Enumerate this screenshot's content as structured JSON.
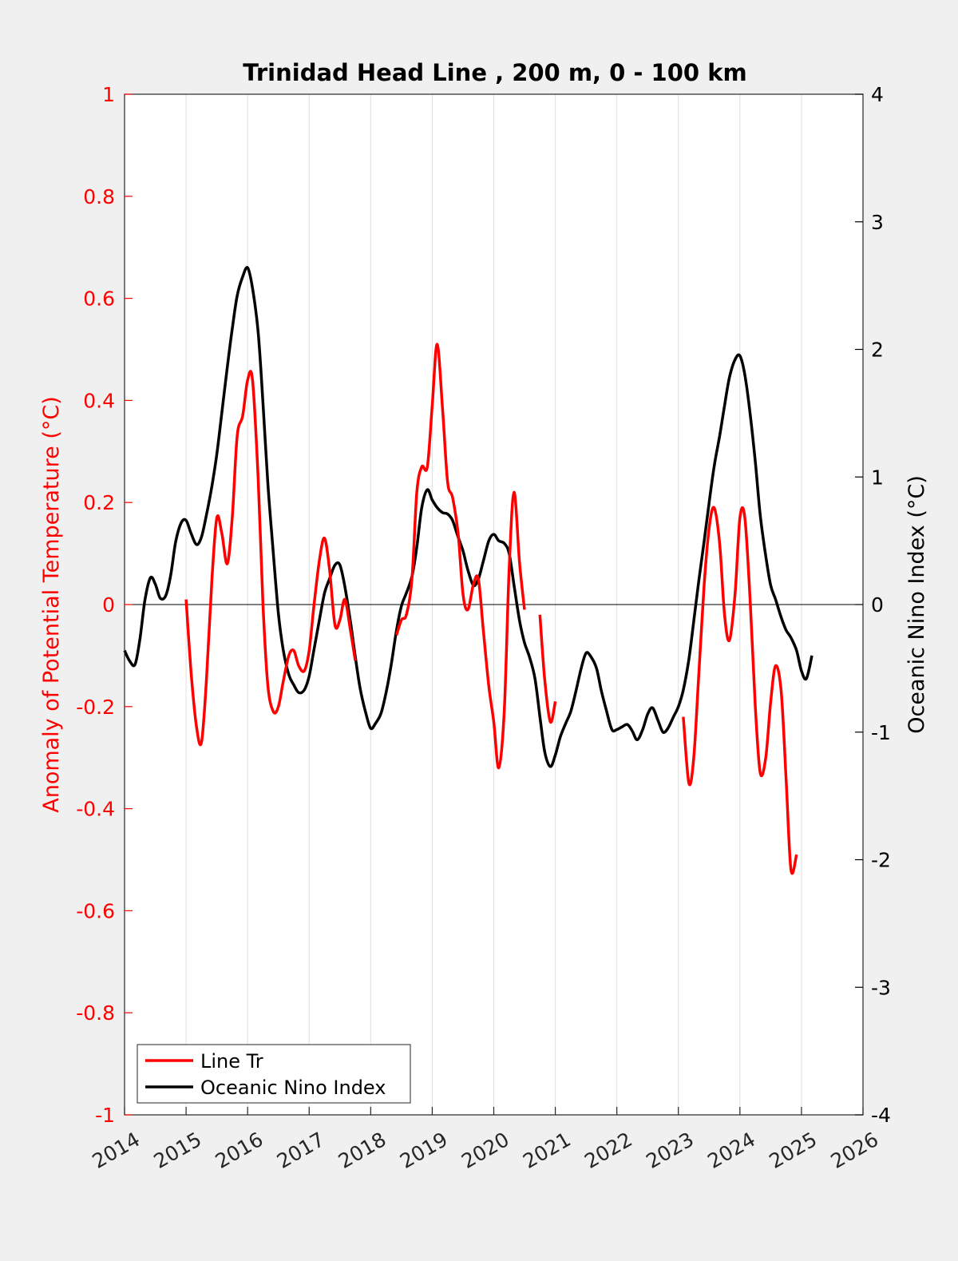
{
  "chart_data": {
    "type": "line",
    "title": "Trinidad Head Line , 200 m, 0 - 100 km",
    "xlabel": "",
    "ylabel_left": "Anomaly of Potential Temperature (°C)",
    "ylabel_right": "Oceanic Nino Index (°C)",
    "xlim": [
      2014,
      2026
    ],
    "ylim_left": [
      -1,
      1
    ],
    "ylim_right": [
      -4,
      4
    ],
    "x_ticks": [
      "2014",
      "2015",
      "2016",
      "2017",
      "2018",
      "2019",
      "2020",
      "2021",
      "2022",
      "2023",
      "2024",
      "2025",
      "2026"
    ],
    "y_ticks_left": [
      "1",
      "0.8",
      "0.6",
      "0.4",
      "0.2",
      "0",
      "-0.2",
      "-0.4",
      "-0.6",
      "-0.8",
      "-1"
    ],
    "y_ticks_right": [
      "4",
      "3",
      "2",
      "1",
      "0",
      "-1",
      "-2",
      "-3",
      "-4"
    ],
    "grid": "vertical",
    "zero_line": true,
    "colors": {
      "line_tr": "#ff0000",
      "oni": "#000000",
      "left_axis": "#ff0000",
      "right_axis": "#000000",
      "grid": "#e0e0e0"
    },
    "legend": {
      "placement": "bottom-left",
      "entries": [
        {
          "label": "Line Tr",
          "color": "#ff0000"
        },
        {
          "label": "Oceanic Nino Index",
          "color": "#000000"
        }
      ]
    },
    "series": [
      {
        "name": "Line Tr",
        "axis": "left",
        "color": "#ff0000",
        "segments": [
          [
            [
              2015.0,
              0.01
            ],
            [
              2015.08,
              -0.13
            ],
            [
              2015.17,
              -0.24
            ],
            [
              2015.25,
              -0.27
            ],
            [
              2015.33,
              -0.15
            ],
            [
              2015.42,
              0.05
            ],
            [
              2015.5,
              0.17
            ],
            [
              2015.58,
              0.14
            ],
            [
              2015.67,
              0.08
            ],
            [
              2015.75,
              0.17
            ],
            [
              2015.83,
              0.33
            ],
            [
              2015.92,
              0.37
            ],
            [
              2016.0,
              0.44
            ],
            [
              2016.08,
              0.44
            ],
            [
              2016.17,
              0.25
            ],
            [
              2016.25,
              0.0
            ],
            [
              2016.33,
              -0.16
            ],
            [
              2016.42,
              -0.21
            ],
            [
              2016.5,
              -0.2
            ],
            [
              2016.58,
              -0.15
            ],
            [
              2016.67,
              -0.1
            ],
            [
              2016.75,
              -0.09
            ],
            [
              2016.83,
              -0.12
            ],
            [
              2016.92,
              -0.13
            ],
            [
              2017.0,
              -0.09
            ],
            [
              2017.08,
              0.0
            ],
            [
              2017.17,
              0.09
            ],
            [
              2017.25,
              0.13
            ],
            [
              2017.33,
              0.07
            ],
            [
              2017.42,
              -0.04
            ],
            [
              2017.5,
              -0.03
            ],
            [
              2017.58,
              0.01
            ],
            [
              2017.67,
              -0.05
            ],
            [
              2017.75,
              -0.11
            ]
          ],
          [
            [
              2018.42,
              -0.06
            ],
            [
              2018.5,
              -0.03
            ],
            [
              2018.58,
              -0.02
            ],
            [
              2018.67,
              0.05
            ],
            [
              2018.75,
              0.22
            ],
            [
              2018.83,
              0.27
            ],
            [
              2018.92,
              0.27
            ],
            [
              2019.0,
              0.39
            ],
            [
              2019.08,
              0.51
            ],
            [
              2019.17,
              0.38
            ],
            [
              2019.25,
              0.24
            ],
            [
              2019.33,
              0.21
            ],
            [
              2019.42,
              0.14
            ],
            [
              2019.5,
              0.02
            ],
            [
              2019.58,
              -0.01
            ],
            [
              2019.67,
              0.04
            ],
            [
              2019.75,
              0.05
            ],
            [
              2019.83,
              -0.05
            ],
            [
              2019.92,
              -0.16
            ],
            [
              2020.0,
              -0.23
            ],
            [
              2020.08,
              -0.32
            ],
            [
              2020.17,
              -0.21
            ],
            [
              2020.25,
              0.07
            ],
            [
              2020.33,
              0.22
            ],
            [
              2020.42,
              0.08
            ],
            [
              2020.5,
              -0.01
            ]
          ],
          [
            [
              2020.75,
              -0.02
            ],
            [
              2020.83,
              -0.15
            ],
            [
              2020.92,
              -0.23
            ],
            [
              2021.0,
              -0.19
            ]
          ],
          [
            [
              2023.08,
              -0.22
            ],
            [
              2023.17,
              -0.35
            ],
            [
              2023.25,
              -0.3
            ],
            [
              2023.33,
              -0.14
            ],
            [
              2023.42,
              0.04
            ],
            [
              2023.5,
              0.15
            ],
            [
              2023.58,
              0.19
            ],
            [
              2023.67,
              0.12
            ],
            [
              2023.75,
              -0.02
            ],
            [
              2023.83,
              -0.07
            ],
            [
              2023.92,
              0.02
            ],
            [
              2024.0,
              0.17
            ],
            [
              2024.08,
              0.17
            ],
            [
              2024.17,
              0.0
            ],
            [
              2024.25,
              -0.2
            ],
            [
              2024.33,
              -0.33
            ],
            [
              2024.42,
              -0.3
            ],
            [
              2024.5,
              -0.19
            ],
            [
              2024.58,
              -0.12
            ],
            [
              2024.67,
              -0.17
            ],
            [
              2024.75,
              -0.34
            ],
            [
              2024.83,
              -0.52
            ],
            [
              2024.92,
              -0.49
            ]
          ]
        ]
      },
      {
        "name": "Oceanic Nino Index",
        "axis": "right",
        "color": "#000000",
        "segments": [
          [
            [
              2014.0,
              -0.36
            ],
            [
              2014.08,
              -0.44
            ],
            [
              2014.17,
              -0.47
            ],
            [
              2014.25,
              -0.27
            ],
            [
              2014.33,
              0.03
            ],
            [
              2014.42,
              0.21
            ],
            [
              2014.5,
              0.16
            ],
            [
              2014.58,
              0.05
            ],
            [
              2014.67,
              0.07
            ],
            [
              2014.75,
              0.23
            ],
            [
              2014.83,
              0.49
            ],
            [
              2014.92,
              0.64
            ],
            [
              2015.0,
              0.66
            ],
            [
              2015.08,
              0.56
            ],
            [
              2015.17,
              0.47
            ],
            [
              2015.25,
              0.53
            ],
            [
              2015.33,
              0.7
            ],
            [
              2015.42,
              0.93
            ],
            [
              2015.5,
              1.18
            ],
            [
              2015.58,
              1.5
            ],
            [
              2015.67,
              1.86
            ],
            [
              2015.75,
              2.16
            ],
            [
              2015.83,
              2.42
            ],
            [
              2015.92,
              2.57
            ],
            [
              2016.0,
              2.64
            ],
            [
              2016.08,
              2.48
            ],
            [
              2016.17,
              2.14
            ],
            [
              2016.25,
              1.58
            ],
            [
              2016.33,
              0.94
            ],
            [
              2016.42,
              0.39
            ],
            [
              2016.5,
              -0.07
            ],
            [
              2016.58,
              -0.36
            ],
            [
              2016.67,
              -0.55
            ],
            [
              2016.75,
              -0.63
            ],
            [
              2016.83,
              -0.69
            ],
            [
              2016.92,
              -0.67
            ],
            [
              2017.0,
              -0.56
            ],
            [
              2017.08,
              -0.35
            ],
            [
              2017.17,
              -0.11
            ],
            [
              2017.25,
              0.09
            ],
            [
              2017.33,
              0.2
            ],
            [
              2017.42,
              0.31
            ],
            [
              2017.5,
              0.31
            ],
            [
              2017.58,
              0.14
            ],
            [
              2017.67,
              -0.13
            ],
            [
              2017.75,
              -0.41
            ],
            [
              2017.83,
              -0.66
            ],
            [
              2017.92,
              -0.85
            ],
            [
              2018.0,
              -0.97
            ],
            [
              2018.08,
              -0.93
            ],
            [
              2018.17,
              -0.85
            ],
            [
              2018.25,
              -0.69
            ],
            [
              2018.33,
              -0.48
            ],
            [
              2018.42,
              -0.2
            ],
            [
              2018.5,
              -0.01
            ],
            [
              2018.58,
              0.09
            ],
            [
              2018.67,
              0.22
            ],
            [
              2018.75,
              0.45
            ],
            [
              2018.83,
              0.76
            ],
            [
              2018.92,
              0.9
            ],
            [
              2019.0,
              0.82
            ],
            [
              2019.08,
              0.76
            ],
            [
              2019.17,
              0.72
            ],
            [
              2019.25,
              0.71
            ],
            [
              2019.33,
              0.66
            ],
            [
              2019.42,
              0.53
            ],
            [
              2019.5,
              0.42
            ],
            [
              2019.58,
              0.27
            ],
            [
              2019.67,
              0.15
            ],
            [
              2019.75,
              0.2
            ],
            [
              2019.83,
              0.34
            ],
            [
              2019.92,
              0.5
            ],
            [
              2020.0,
              0.55
            ],
            [
              2020.08,
              0.5
            ],
            [
              2020.17,
              0.48
            ],
            [
              2020.25,
              0.4
            ],
            [
              2020.33,
              0.15
            ],
            [
              2020.42,
              -0.13
            ],
            [
              2020.5,
              -0.3
            ],
            [
              2020.58,
              -0.41
            ],
            [
              2020.67,
              -0.58
            ],
            [
              2020.75,
              -0.88
            ],
            [
              2020.83,
              -1.16
            ],
            [
              2020.92,
              -1.27
            ],
            [
              2021.0,
              -1.18
            ],
            [
              2021.08,
              -1.04
            ],
            [
              2021.17,
              -0.93
            ],
            [
              2021.25,
              -0.84
            ],
            [
              2021.33,
              -0.69
            ],
            [
              2021.42,
              -0.5
            ],
            [
              2021.5,
              -0.38
            ],
            [
              2021.58,
              -0.41
            ],
            [
              2021.67,
              -0.5
            ],
            [
              2021.75,
              -0.68
            ],
            [
              2021.83,
              -0.83
            ],
            [
              2021.92,
              -0.98
            ],
            [
              2022.0,
              -0.98
            ],
            [
              2022.08,
              -0.96
            ],
            [
              2022.17,
              -0.94
            ],
            [
              2022.25,
              -0.99
            ],
            [
              2022.33,
              -1.06
            ],
            [
              2022.42,
              -0.98
            ],
            [
              2022.5,
              -0.86
            ],
            [
              2022.58,
              -0.81
            ],
            [
              2022.67,
              -0.91
            ],
            [
              2022.75,
              -1.0
            ],
            [
              2022.83,
              -0.97
            ],
            [
              2022.92,
              -0.88
            ],
            [
              2023.0,
              -0.8
            ],
            [
              2023.08,
              -0.67
            ],
            [
              2023.17,
              -0.43
            ],
            [
              2023.25,
              -0.13
            ],
            [
              2023.33,
              0.18
            ],
            [
              2023.42,
              0.5
            ],
            [
              2023.5,
              0.8
            ],
            [
              2023.58,
              1.08
            ],
            [
              2023.67,
              1.32
            ],
            [
              2023.75,
              1.56
            ],
            [
              2023.83,
              1.78
            ],
            [
              2023.92,
              1.92
            ],
            [
              2024.0,
              1.95
            ],
            [
              2024.08,
              1.8
            ],
            [
              2024.17,
              1.48
            ],
            [
              2024.25,
              1.12
            ],
            [
              2024.33,
              0.7
            ],
            [
              2024.42,
              0.38
            ],
            [
              2024.5,
              0.15
            ],
            [
              2024.58,
              0.04
            ],
            [
              2024.67,
              -0.1
            ],
            [
              2024.75,
              -0.2
            ],
            [
              2024.83,
              -0.26
            ],
            [
              2024.92,
              -0.36
            ],
            [
              2025.0,
              -0.52
            ],
            [
              2025.08,
              -0.58
            ],
            [
              2025.17,
              -0.4
            ]
          ]
        ]
      }
    ]
  }
}
